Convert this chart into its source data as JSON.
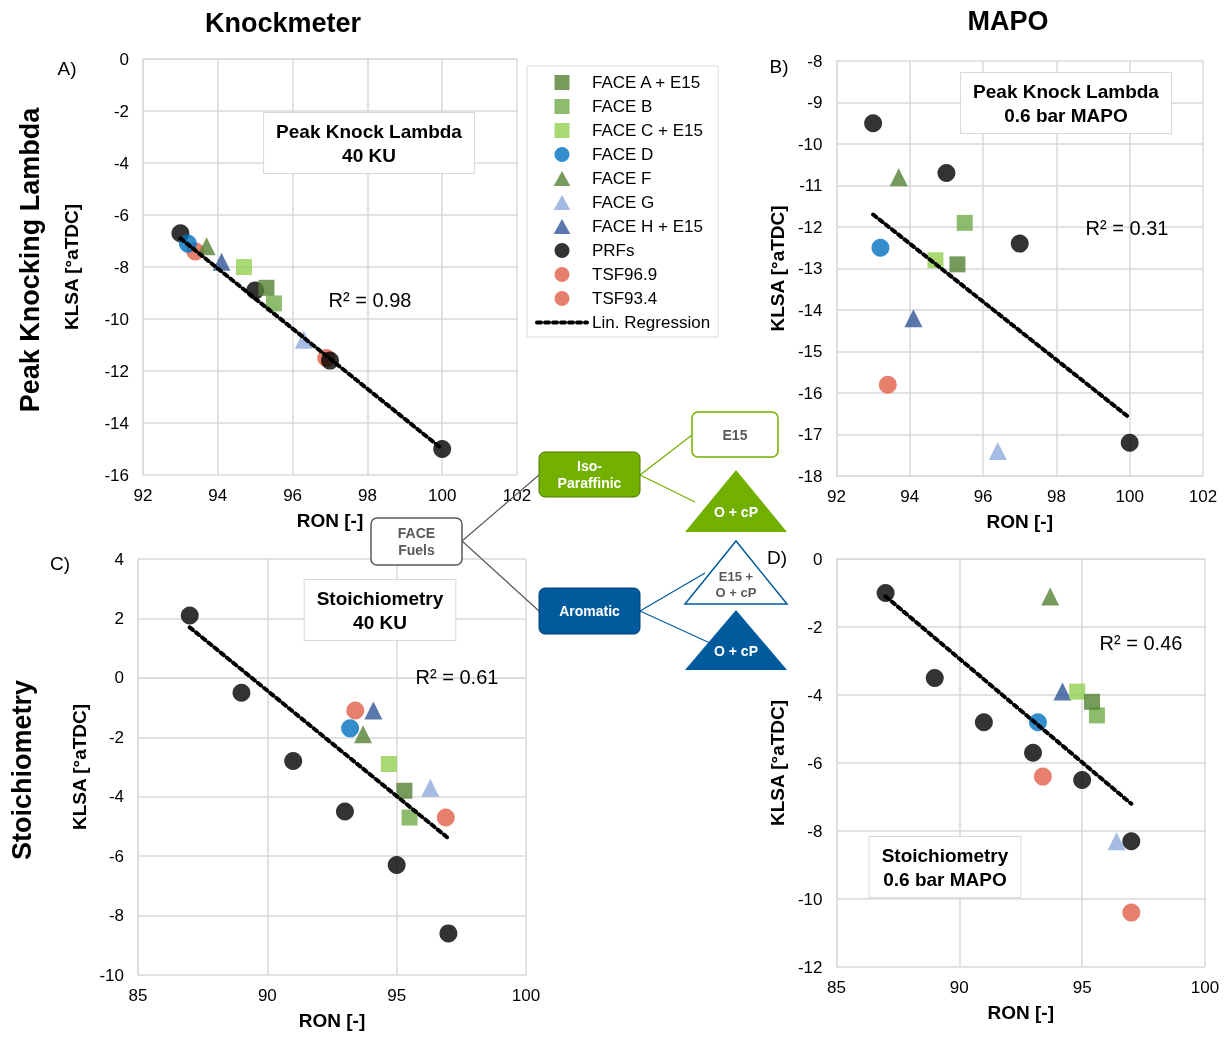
{
  "chart_data": [
    {
      "type": "scatter",
      "title": "Knockmeter",
      "xlabel": "RON [-]",
      "ylabel": "KLSA [°aTDC]",
      "xlim": [
        92,
        102
      ],
      "xticks": [
        92,
        94,
        96,
        98,
        100,
        102
      ],
      "ylim": [
        -16,
        0
      ],
      "yticks": [
        -16,
        -14,
        -12,
        -10,
        -8,
        -6,
        -4,
        -2,
        0
      ],
      "grid": true,
      "legend": "right",
      "annotations": [
        "A)",
        "Peak Knock Lambda\n40 KU",
        "R² = 0.98",
        "Peak Knocking Lambda"
      ],
      "series": [
        {
          "name": "FACE A + E15",
          "type": "scatter",
          "marker": "square",
          "color": "#548235",
          "x": [
            95.3
          ],
          "values": [
            -8.8
          ]
        },
        {
          "name": "FACE B",
          "type": "scatter",
          "marker": "square",
          "color": "#70ad47",
          "x": [
            95.5
          ],
          "values": [
            -9.4
          ]
        },
        {
          "name": "FACE C + E15",
          "type": "scatter",
          "marker": "square",
          "color": "#92d050",
          "x": [
            94.7
          ],
          "values": [
            -8.0
          ]
        },
        {
          "name": "FACE D",
          "type": "scatter",
          "marker": "circle",
          "color": "#0070c0",
          "x": [
            93.2
          ],
          "values": [
            -7.1
          ]
        },
        {
          "name": "FACE F",
          "type": "scatter",
          "marker": "triangle",
          "color": "#548235",
          "x": [
            93.7
          ],
          "values": [
            -7.2
          ]
        },
        {
          "name": "FACE G",
          "type": "scatter",
          "marker": "triangle",
          "color": "#8faadc",
          "x": [
            96.3
          ],
          "values": [
            -10.8
          ]
        },
        {
          "name": "FACE H + E15",
          "type": "scatter",
          "marker": "triangle",
          "color": "#2f5597",
          "x": [
            94.1
          ],
          "values": [
            -7.8
          ]
        },
        {
          "name": "PRFs",
          "type": "scatter",
          "marker": "circle",
          "color": "#000000",
          "x": [
            93,
            95,
            97,
            100
          ],
          "values": [
            -6.7,
            -8.9,
            -11.6,
            -15.0
          ]
        },
        {
          "name": "TSF96.9",
          "type": "scatter",
          "marker": "circle",
          "color": "#e06048",
          "x": [
            96.9
          ],
          "values": [
            -11.5
          ]
        },
        {
          "name": "TSF93.4",
          "type": "scatter",
          "marker": "circle",
          "color": "#e06048",
          "x": [
            93.4
          ],
          "values": [
            -7.4
          ]
        },
        {
          "name": "Lin. Regression",
          "type": "line",
          "line_style": "dotted",
          "color": "#000000",
          "x": [
            93,
            100
          ],
          "values": [
            -6.9,
            -15.0
          ]
        }
      ]
    },
    {
      "type": "scatter",
      "title": "MAPO",
      "xlabel": "RON [-]",
      "ylabel": "KLSA [°aTDC]",
      "xlim": [
        92,
        102
      ],
      "xticks": [
        92,
        94,
        96,
        98,
        100,
        102
      ],
      "ylim": [
        -18,
        -8
      ],
      "yticks": [
        -18,
        -17,
        -16,
        -15,
        -14,
        -13,
        -12,
        -11,
        -10,
        -9,
        -8
      ],
      "grid": true,
      "annotations": [
        "B)",
        "Peak Knock Lambda\n0.6 bar MAPO",
        "R² = 0.31"
      ],
      "series": [
        {
          "type": "scatter",
          "marker": "square",
          "color": "#548235",
          "x": [
            95.3
          ],
          "values": [
            -12.9
          ]
        },
        {
          "type": "scatter",
          "marker": "square",
          "color": "#70ad47",
          "x": [
            95.5
          ],
          "values": [
            -11.9
          ]
        },
        {
          "type": "scatter",
          "marker": "square",
          "color": "#92d050",
          "x": [
            94.7
          ],
          "values": [
            -12.8
          ]
        },
        {
          "type": "scatter",
          "marker": "circle",
          "color": "#0070c0",
          "x": [
            93.2
          ],
          "values": [
            -12.5
          ]
        },
        {
          "type": "scatter",
          "marker": "triangle",
          "color": "#548235",
          "x": [
            93.7
          ],
          "values": [
            -10.8
          ]
        },
        {
          "type": "scatter",
          "marker": "triangle",
          "color": "#8faadc",
          "x": [
            96.4
          ],
          "values": [
            -17.4
          ]
        },
        {
          "type": "scatter",
          "marker": "triangle",
          "color": "#2f5597",
          "x": [
            94.1
          ],
          "values": [
            -14.2
          ]
        },
        {
          "type": "scatter",
          "marker": "circle",
          "color": "#000000",
          "x": [
            93,
            95,
            97,
            100
          ],
          "values": [
            -9.5,
            -10.7,
            -12.4,
            -17.2
          ]
        },
        {
          "type": "scatter",
          "marker": "circle",
          "color": "#e06048",
          "x": [
            93.4
          ],
          "values": [
            -15.8
          ]
        },
        {
          "type": "line",
          "line_style": "dotted",
          "color": "#000000",
          "x": [
            93,
            100
          ],
          "values": [
            -11.7,
            -16.6
          ]
        }
      ]
    },
    {
      "type": "scatter",
      "xlabel": "RON [-]",
      "ylabel": "KLSA [°aTDC]",
      "xlim": [
        85,
        100
      ],
      "xticks": [
        85,
        90,
        95,
        100
      ],
      "ylim": [
        -10,
        4
      ],
      "yticks": [
        -10,
        -8,
        -6,
        -4,
        -2,
        0,
        2,
        4
      ],
      "grid": true,
      "annotations": [
        "C)",
        "Stoichiometry\n40 KU",
        "R² = 0.61",
        "Stoichiometry"
      ],
      "series": [
        {
          "type": "scatter",
          "marker": "square",
          "color": "#548235",
          "x": [
            95.3
          ],
          "values": [
            -3.8
          ]
        },
        {
          "type": "scatter",
          "marker": "square",
          "color": "#70ad47",
          "x": [
            95.5
          ],
          "values": [
            -4.7
          ]
        },
        {
          "type": "scatter",
          "marker": "square",
          "color": "#92d050",
          "x": [
            94.7
          ],
          "values": [
            -2.9
          ]
        },
        {
          "type": "scatter",
          "marker": "circle",
          "color": "#0070c0",
          "x": [
            93.2
          ],
          "values": [
            -1.7
          ]
        },
        {
          "type": "scatter",
          "marker": "triangle",
          "color": "#548235",
          "x": [
            93.7
          ],
          "values": [
            -1.9
          ]
        },
        {
          "type": "scatter",
          "marker": "triangle",
          "color": "#8faadc",
          "x": [
            96.3
          ],
          "values": [
            -3.7
          ]
        },
        {
          "type": "scatter",
          "marker": "triangle",
          "color": "#2f5597",
          "x": [
            94.1
          ],
          "values": [
            -1.1
          ]
        },
        {
          "type": "scatter",
          "marker": "circle",
          "color": "#000000",
          "x": [
            87,
            89,
            91,
            93,
            95,
            97
          ],
          "values": [
            2.1,
            -0.5,
            -2.8,
            -4.5,
            -6.3,
            -8.6
          ]
        },
        {
          "type": "scatter",
          "marker": "circle",
          "color": "#e06048",
          "x": [
            96.9
          ],
          "values": [
            -4.7
          ]
        },
        {
          "type": "scatter",
          "marker": "circle",
          "color": "#e06048",
          "x": [
            93.4
          ],
          "values": [
            -1.1
          ]
        },
        {
          "type": "line",
          "line_style": "dotted",
          "color": "#000000",
          "x": [
            87,
            97
          ],
          "values": [
            1.7,
            -5.4
          ]
        }
      ]
    },
    {
      "type": "scatter",
      "xlabel": "RON [-]",
      "ylabel": "KLSA [°aTDC]",
      "xlim": [
        85,
        100
      ],
      "xticks": [
        85,
        90,
        95,
        100
      ],
      "ylim": [
        -12,
        0
      ],
      "yticks": [
        -12,
        -10,
        -8,
        -6,
        -4,
        -2,
        0
      ],
      "grid": true,
      "annotations": [
        "D)",
        "Stoichiometry\n0.6 bar MAPO",
        "R² = 0.46"
      ],
      "series": [
        {
          "type": "scatter",
          "marker": "square",
          "color": "#548235",
          "x": [
            95.4
          ],
          "values": [
            -4.2
          ]
        },
        {
          "type": "scatter",
          "marker": "square",
          "color": "#70ad47",
          "x": [
            95.6
          ],
          "values": [
            -4.6
          ]
        },
        {
          "type": "scatter",
          "marker": "square",
          "color": "#92d050",
          "x": [
            94.8
          ],
          "values": [
            -3.9
          ]
        },
        {
          "type": "scatter",
          "marker": "circle",
          "color": "#0070c0",
          "x": [
            93.2
          ],
          "values": [
            -4.8
          ]
        },
        {
          "type": "scatter",
          "marker": "triangle",
          "color": "#548235",
          "x": [
            93.7
          ],
          "values": [
            -1.1
          ]
        },
        {
          "type": "scatter",
          "marker": "triangle",
          "color": "#8faadc",
          "x": [
            96.4
          ],
          "values": [
            -8.3
          ]
        },
        {
          "type": "scatter",
          "marker": "triangle",
          "color": "#2f5597",
          "x": [
            94.2
          ],
          "values": [
            -3.9
          ]
        },
        {
          "type": "scatter",
          "marker": "circle",
          "color": "#000000",
          "x": [
            87,
            89,
            91,
            93,
            95,
            97
          ],
          "values": [
            -1.0,
            -3.5,
            -4.8,
            -5.7,
            -6.5,
            -8.3
          ]
        },
        {
          "type": "scatter",
          "marker": "circle",
          "color": "#e06048",
          "x": [
            97
          ],
          "values": [
            -10.4
          ]
        },
        {
          "type": "scatter",
          "marker": "circle",
          "color": "#e06048",
          "x": [
            93.4
          ],
          "values": [
            -6.4
          ]
        },
        {
          "type": "line",
          "line_style": "dotted",
          "color": "#000000",
          "x": [
            87,
            97
          ],
          "values": [
            -1.1,
            -7.2
          ]
        }
      ]
    },
    {
      "type": "other",
      "annotations": [
        "FACE\nFuels",
        "Iso-\nParaffinic",
        "Aromatic",
        "E15",
        "O + cP",
        "E15 +\nO + cP",
        "O + cP"
      ]
    }
  ]
}
